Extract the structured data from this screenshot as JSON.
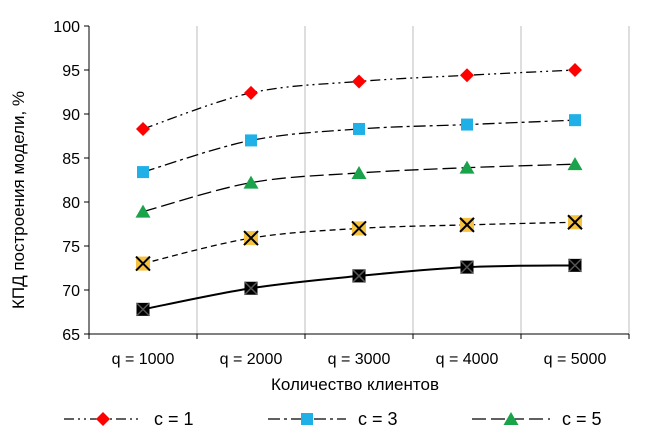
{
  "chart_data": {
    "type": "line",
    "title": "",
    "xlabel": "Количество клиентов",
    "ylabel": "КПД построения модели, %",
    "categories": [
      "q = 1000",
      "q = 2000",
      "q = 3000",
      "q = 4000",
      "q = 5000"
    ],
    "ylim": [
      65,
      100
    ],
    "yticks": [
      65,
      70,
      75,
      80,
      85,
      90,
      95,
      100
    ],
    "grid": "vertical",
    "legend_position": "bottom",
    "series": [
      {
        "name": "c = 1",
        "values": [
          88.3,
          92.4,
          93.7,
          94.4,
          95.0
        ],
        "color": "#ff0000",
        "marker": "diamond",
        "dash": "dash-dot-dot",
        "in_legend": true
      },
      {
        "name": "c = 3",
        "values": [
          83.4,
          87.0,
          88.3,
          88.8,
          89.3
        ],
        "color": "#1fb0e8",
        "marker": "square",
        "dash": "dash-dot",
        "in_legend": true
      },
      {
        "name": "c = 5",
        "values": [
          78.9,
          82.2,
          83.3,
          83.9,
          84.3
        ],
        "color": "#1aa34a",
        "marker": "triangle",
        "dash": "long-dash",
        "in_legend": true
      },
      {
        "name": "",
        "values": [
          73.0,
          75.9,
          77.0,
          77.4,
          77.7
        ],
        "color": "#f5c242",
        "marker": "x-box",
        "dash": "short-dash",
        "in_legend": false
      },
      {
        "name": "",
        "values": [
          67.8,
          70.2,
          71.6,
          72.6,
          72.8
        ],
        "color": "#000000",
        "marker": "square-black",
        "dash": "solid",
        "in_legend": false
      }
    ]
  }
}
